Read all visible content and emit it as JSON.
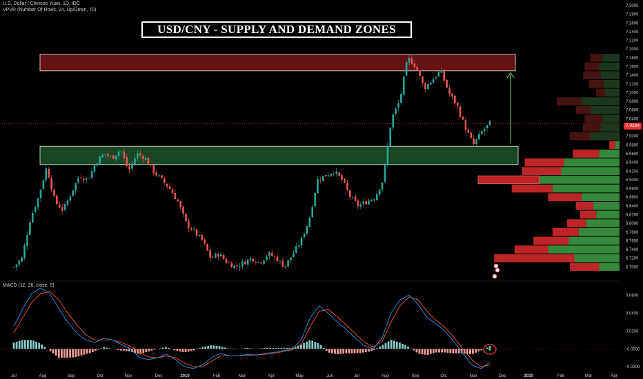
{
  "legend": {
    "symbol": "U.S. Dollar / Chinese Yuan, 1D, IDC",
    "vpvr": "VPVR (Number Of Rows, 24, Up/Down, 70)",
    "macd": "MACD (12, 26, close, 9)"
  },
  "title": "USD/CNY - SUPPLY AND DEMAND ZONES",
  "price_badge": "7.0284",
  "colors": {
    "background": "#000000",
    "up_candle": "#26a69a",
    "down_candle": "#ef5350",
    "supply_zone": "#6b1414",
    "demand_zone": "#1b4a27",
    "arrow": "#4caf50",
    "macd_line": "#2196f3",
    "signal_line": "#ff5722",
    "vpvr_up": "#388e3c",
    "vpvr_down": "#c62828"
  },
  "chart_data": [
    {
      "type": "line",
      "name": "price",
      "ylim": [
        6.68,
        7.3
      ],
      "y_ticks": [
        "7.3000",
        "7.2800",
        "7.2600",
        "7.2400",
        "7.2200",
        "7.2000",
        "7.1800",
        "7.1600",
        "7.1400",
        "7.1200",
        "7.1000",
        "7.0800",
        "7.0600",
        "7.0400",
        "7.0200",
        "7.0000",
        "6.9800",
        "6.9600",
        "6.9400",
        "6.9200",
        "6.9000",
        "6.8800",
        "6.8600",
        "6.8400",
        "6.8200",
        "6.8000",
        "6.7800",
        "6.7600",
        "6.7400",
        "6.7200",
        "6.7000"
      ],
      "x_ticks": [
        "Jul",
        "Aug",
        "Sep",
        "Oct",
        "Nov",
        "Dec",
        "2019",
        "Feb",
        "Mar",
        "Apr",
        "May",
        "Jun",
        "Jul",
        "Aug",
        "Sep",
        "Oct",
        "Nov",
        "Dec",
        "2020",
        "Feb",
        "Mar",
        "Apr"
      ],
      "series": [
        {
          "values": [
            6.7,
            6.72,
            6.81,
            6.86,
            6.93,
            6.85,
            6.83,
            6.87,
            6.91,
            6.9,
            6.94,
            6.96,
            6.95,
            6.97,
            6.92,
            6.96,
            6.95,
            6.92,
            6.9,
            6.88,
            6.85,
            6.8,
            6.78,
            6.76,
            6.72,
            6.73,
            6.71,
            6.7,
            6.71,
            6.72,
            6.71,
            6.73,
            6.72,
            6.7,
            6.73,
            6.76,
            6.81,
            6.9,
            6.91,
            6.92,
            6.9,
            6.86,
            6.84,
            6.85,
            6.86,
            6.9,
            7.04,
            7.08,
            7.18,
            7.16,
            7.11,
            7.13,
            7.15,
            7.1,
            7.07,
            7.02,
            6.98,
            7.01,
            7.03
          ]
        }
      ],
      "zones": [
        {
          "name": "supply",
          "low": 7.15,
          "high": 7.188
        },
        {
          "name": "demand",
          "low": 6.935,
          "high": 6.977
        }
      ],
      "arrow": {
        "from": 6.985,
        "to": 7.145
      },
      "vpvr": [
        {
          "price": 7.18,
          "up": 0.12,
          "down": 0.08
        },
        {
          "price": 7.16,
          "up": 0.14,
          "down": 0.1
        },
        {
          "price": 7.14,
          "up": 0.13,
          "down": 0.12
        },
        {
          "price": 7.12,
          "up": 0.11,
          "down": 0.1
        },
        {
          "price": 7.1,
          "up": 0.1,
          "down": 0.06
        },
        {
          "price": 7.08,
          "up": 0.26,
          "down": 0.17
        },
        {
          "price": 7.06,
          "up": 0.2,
          "down": 0.1
        },
        {
          "price": 7.04,
          "up": 0.12,
          "down": 0.12
        },
        {
          "price": 7.02,
          "up": 0.13,
          "down": 0.12
        },
        {
          "price": 7.0,
          "up": 0.2,
          "down": 0.14
        },
        {
          "price": 6.98,
          "up": 0.03,
          "down": 0.04
        },
        {
          "price": 6.96,
          "up": 0.14,
          "down": 0.18
        },
        {
          "price": 6.94,
          "up": 0.38,
          "down": 0.27
        },
        {
          "price": 6.92,
          "up": 0.4,
          "down": 0.27
        },
        {
          "price": 6.9,
          "up": 0.55,
          "down": 0.42
        },
        {
          "price": 6.88,
          "up": 0.46,
          "down": 0.28
        },
        {
          "price": 6.86,
          "up": 0.26,
          "down": 0.23
        },
        {
          "price": 6.84,
          "up": 0.18,
          "down": 0.12
        },
        {
          "price": 6.82,
          "up": 0.16,
          "down": 0.11
        },
        {
          "price": 6.8,
          "up": 0.23,
          "down": 0.13
        },
        {
          "price": 6.78,
          "up": 0.28,
          "down": 0.18
        },
        {
          "price": 6.76,
          "up": 0.35,
          "down": 0.24
        },
        {
          "price": 6.74,
          "up": 0.49,
          "down": 0.23
        },
        {
          "price": 6.72,
          "up": 0.31,
          "down": 0.55
        },
        {
          "price": 6.7,
          "up": 0.14,
          "down": 0.2
        }
      ]
    },
    {
      "type": "line",
      "name": "MACD (12, 26, close, 9)",
      "ylim": [
        -0.026,
        0.068
      ],
      "y_ticks": [
        "0.0600",
        "0.0400",
        "0.0200",
        "-0.0000",
        "-0.0200"
      ],
      "series": [
        {
          "name": "MACD",
          "values": [
            0.025,
            0.045,
            0.062,
            0.068,
            0.062,
            0.045,
            0.03,
            0.018,
            0.01,
            0.007,
            0.012,
            0.01,
            0.005,
            0.0,
            -0.01,
            -0.012,
            -0.01,
            -0.006,
            -0.012,
            -0.02,
            -0.022,
            -0.018,
            -0.01,
            -0.005,
            -0.008,
            -0.008,
            -0.006,
            -0.007,
            -0.005,
            -0.004,
            -0.002,
            0.0,
            0.01,
            0.035,
            0.048,
            0.04,
            0.03,
            0.022,
            0.012,
            0.004,
            0.0,
            0.012,
            0.04,
            0.055,
            0.06,
            0.05,
            0.035,
            0.028,
            0.02,
            0.008,
            -0.005,
            -0.018,
            -0.022,
            -0.015
          ]
        },
        {
          "name": "Signal",
          "values": [
            0.018,
            0.035,
            0.052,
            0.062,
            0.064,
            0.055,
            0.04,
            0.027,
            0.016,
            0.01,
            0.01,
            0.01,
            0.007,
            0.003,
            -0.004,
            -0.009,
            -0.01,
            -0.008,
            -0.01,
            -0.016,
            -0.02,
            -0.02,
            -0.014,
            -0.008,
            -0.008,
            -0.008,
            -0.007,
            -0.007,
            -0.006,
            -0.005,
            -0.003,
            -0.001,
            0.005,
            0.025,
            0.042,
            0.044,
            0.036,
            0.027,
            0.017,
            0.008,
            0.002,
            0.008,
            0.03,
            0.048,
            0.058,
            0.055,
            0.042,
            0.032,
            0.024,
            0.013,
            0.0,
            -0.012,
            -0.02,
            -0.018
          ]
        }
      ]
    }
  ]
}
